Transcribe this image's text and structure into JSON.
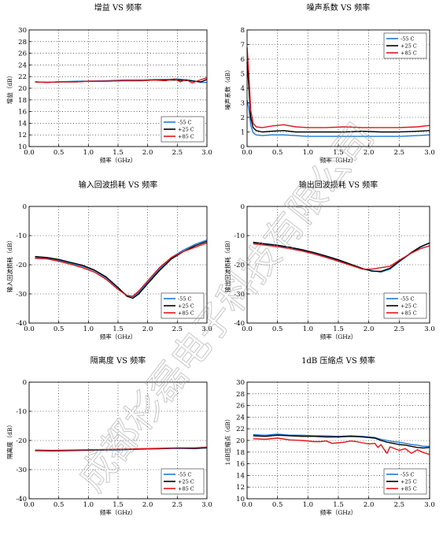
{
  "colors": {
    "m55": "#1f77d4",
    "p25": "#000000",
    "p85": "#e0161b"
  },
  "watermark": "成都杉磊电子科技有限公司",
  "chart_data": [
    {
      "type": "line",
      "title": "增益 VS 频率",
      "xlabel": "频率（GHz）",
      "ylabel": "增益（dB）",
      "xlim": [
        0.0,
        3.0
      ],
      "ylim": [
        10,
        30
      ],
      "xticks": [
        "0.0",
        "0.5",
        "1.0",
        "1.5",
        "2.0",
        "2.5",
        "3.0"
      ],
      "yticks": [
        "10",
        "12",
        "14",
        "16",
        "18",
        "20",
        "22",
        "24",
        "26",
        "28",
        "30"
      ],
      "legend_position": "bottom-right",
      "grid": true,
      "series": [
        {
          "name": "-55 C",
          "color": "#1f77d4",
          "x": [
            0.1,
            0.3,
            0.5,
            0.8,
            1.0,
            1.3,
            1.6,
            1.9,
            2.1,
            2.3,
            2.5,
            2.7,
            2.9,
            3.0
          ],
          "y": [
            21.1,
            21.0,
            21.1,
            21.2,
            21.2,
            21.3,
            21.4,
            21.4,
            21.5,
            21.5,
            21.6,
            21.4,
            21.0,
            21.0
          ]
        },
        {
          "name": "+25 C",
          "color": "#000000",
          "x": [
            0.1,
            0.3,
            0.5,
            0.8,
            1.0,
            1.3,
            1.6,
            1.9,
            2.1,
            2.3,
            2.5,
            2.7,
            2.9,
            3.0
          ],
          "y": [
            21.1,
            21.0,
            21.1,
            21.1,
            21.2,
            21.2,
            21.3,
            21.3,
            21.4,
            21.4,
            21.4,
            21.3,
            21.1,
            21.5
          ]
        },
        {
          "name": "+85 C",
          "color": "#e0161b",
          "x": [
            0.1,
            0.3,
            0.5,
            0.8,
            1.0,
            1.3,
            1.6,
            1.9,
            2.1,
            2.3,
            2.45,
            2.55,
            2.65,
            2.75,
            2.85,
            3.0
          ],
          "y": [
            21.1,
            21.0,
            21.1,
            21.1,
            21.2,
            21.2,
            21.3,
            21.3,
            21.4,
            21.3,
            21.6,
            21.1,
            21.5,
            20.9,
            21.3,
            21.8
          ]
        }
      ]
    },
    {
      "type": "line",
      "title": "噪声系数 VS 频率",
      "xlabel": "频率（GHz）",
      "ylabel": "噪声系数（dB）",
      "xlim": [
        0.0,
        3.0
      ],
      "ylim": [
        0,
        8
      ],
      "xticks": [
        "0.0",
        "0.5",
        "1.0",
        "1.5",
        "2.0",
        "2.5",
        "3.0"
      ],
      "yticks": [
        "0",
        "1",
        "2",
        "3",
        "4",
        "5",
        "6",
        "7",
        "8"
      ],
      "legend_position": "top-right",
      "grid": true,
      "series": [
        {
          "name": "-55 C",
          "color": "#1f77d4",
          "x": [
            0.0,
            0.03,
            0.06,
            0.1,
            0.15,
            0.25,
            0.4,
            0.6,
            0.8,
            1.0,
            1.3,
            1.6,
            1.9,
            2.2,
            2.5,
            2.8,
            3.0
          ],
          "y": [
            3.2,
            2.6,
            1.5,
            0.95,
            0.8,
            0.75,
            0.8,
            0.8,
            0.75,
            0.7,
            0.7,
            0.7,
            0.7,
            0.7,
            0.7,
            0.75,
            0.8
          ]
        },
        {
          "name": "+25 C",
          "color": "#000000",
          "x": [
            0.0,
            0.03,
            0.06,
            0.1,
            0.15,
            0.25,
            0.4,
            0.6,
            0.8,
            1.0,
            1.3,
            1.6,
            1.9,
            2.2,
            2.5,
            2.8,
            3.0
          ],
          "y": [
            5.8,
            4.0,
            2.0,
            1.3,
            1.1,
            1.0,
            1.05,
            1.1,
            1.0,
            1.0,
            1.0,
            1.0,
            1.05,
            1.0,
            1.0,
            1.05,
            1.1
          ]
        },
        {
          "name": "+85 C",
          "color": "#e0161b",
          "x": [
            0.0,
            0.03,
            0.06,
            0.1,
            0.15,
            0.25,
            0.4,
            0.6,
            0.8,
            1.0,
            1.3,
            1.6,
            1.9,
            2.2,
            2.5,
            2.8,
            3.0
          ],
          "y": [
            6.8,
            5.0,
            2.5,
            1.6,
            1.35,
            1.3,
            1.4,
            1.5,
            1.35,
            1.3,
            1.3,
            1.35,
            1.3,
            1.3,
            1.3,
            1.35,
            1.45
          ]
        }
      ]
    },
    {
      "type": "line",
      "title": "输入回波损耗 VS 频率",
      "xlabel": "频率（GHz）",
      "ylabel": "输入回波损耗（dB）",
      "xlim": [
        0.0,
        3.0
      ],
      "ylim": [
        -40,
        0
      ],
      "xticks": [
        "0.0",
        "0.5",
        "1.0",
        "1.5",
        "2.0",
        "2.5",
        "3.0"
      ],
      "yticks": [
        "-40",
        "-30",
        "-20",
        "-10",
        "0"
      ],
      "legend_position": "bottom-right",
      "grid": true,
      "series": [
        {
          "name": "-55 C",
          "color": "#1f77d4",
          "x": [
            0.1,
            0.3,
            0.5,
            0.7,
            0.9,
            1.1,
            1.3,
            1.5,
            1.65,
            1.75,
            1.85,
            2.0,
            2.2,
            2.4,
            2.6,
            2.8,
            3.0
          ],
          "y": [
            -17.5,
            -17.8,
            -18.5,
            -19.5,
            -20.5,
            -22.0,
            -24.5,
            -28.0,
            -30.5,
            -31.0,
            -29.5,
            -26.0,
            -21.5,
            -17.5,
            -15.0,
            -13.0,
            -11.5
          ]
        },
        {
          "name": "+25 C",
          "color": "#000000",
          "x": [
            0.1,
            0.3,
            0.5,
            0.7,
            0.9,
            1.1,
            1.3,
            1.5,
            1.65,
            1.75,
            1.85,
            2.0,
            2.2,
            2.4,
            2.6,
            2.8,
            3.0
          ],
          "y": [
            -17.2,
            -17.5,
            -18.2,
            -19.2,
            -20.2,
            -21.8,
            -24.2,
            -27.8,
            -30.8,
            -31.5,
            -30.0,
            -26.5,
            -22.0,
            -18.0,
            -15.5,
            -13.5,
            -12.0
          ]
        },
        {
          "name": "+85 C",
          "color": "#e0161b",
          "x": [
            0.1,
            0.3,
            0.5,
            0.7,
            0.9,
            1.1,
            1.3,
            1.5,
            1.65,
            1.75,
            1.85,
            2.0,
            2.2,
            2.4,
            2.6,
            2.8,
            3.0
          ],
          "y": [
            -17.8,
            -18.0,
            -18.8,
            -19.8,
            -21.0,
            -22.5,
            -25.0,
            -28.5,
            -30.5,
            -30.8,
            -29.0,
            -25.5,
            -21.0,
            -17.5,
            -15.5,
            -14.0,
            -12.5
          ]
        }
      ]
    },
    {
      "type": "line",
      "title": "输出回波损耗 VS 频率",
      "xlabel": "频率（GHz）",
      "ylabel": "输出回波损耗（dB）",
      "xlim": [
        0.0,
        3.0
      ],
      "ylim": [
        -40,
        0
      ],
      "xticks": [
        "0.0",
        "0.5",
        "1.0",
        "1.5",
        "2.0",
        "2.5",
        "3.0"
      ],
      "yticks": [
        "-40",
        "-30",
        "-20",
        "-10",
        "0"
      ],
      "legend_position": "bottom-right",
      "grid": true,
      "series": [
        {
          "name": "-55 C",
          "color": "#1f77d4",
          "x": [
            0.1,
            0.3,
            0.5,
            0.7,
            0.9,
            1.1,
            1.3,
            1.5,
            1.7,
            1.9,
            2.05,
            2.2,
            2.35,
            2.5,
            2.7,
            2.85,
            3.0
          ],
          "y": [
            -12.5,
            -13.0,
            -13.5,
            -14.2,
            -15.0,
            -16.0,
            -17.2,
            -18.5,
            -20.0,
            -21.5,
            -22.0,
            -22.5,
            -21.5,
            -19.0,
            -16.0,
            -14.0,
            -12.5
          ]
        },
        {
          "name": "+25 C",
          "color": "#000000",
          "x": [
            0.1,
            0.3,
            0.5,
            0.7,
            0.9,
            1.1,
            1.3,
            1.5,
            1.7,
            1.9,
            2.05,
            2.2,
            2.35,
            2.5,
            2.7,
            2.85,
            3.0
          ],
          "y": [
            -12.3,
            -12.8,
            -13.3,
            -14.0,
            -14.8,
            -15.8,
            -17.0,
            -18.3,
            -19.8,
            -21.3,
            -22.2,
            -22.3,
            -21.2,
            -18.8,
            -15.8,
            -13.8,
            -12.5
          ]
        },
        {
          "name": "+85 C",
          "color": "#e0161b",
          "x": [
            0.1,
            0.3,
            0.5,
            0.7,
            0.9,
            1.1,
            1.3,
            1.5,
            1.7,
            1.9,
            2.05,
            2.2,
            2.35,
            2.5,
            2.7,
            2.85,
            3.0
          ],
          "y": [
            -12.8,
            -13.3,
            -13.8,
            -14.5,
            -15.3,
            -16.3,
            -17.5,
            -18.8,
            -20.2,
            -21.5,
            -21.5,
            -21.0,
            -20.5,
            -18.5,
            -16.0,
            -14.5,
            -13.5
          ]
        }
      ]
    },
    {
      "type": "line",
      "title": "隔离度 VS 频率",
      "xlabel": "频率（GHz）",
      "ylabel": "隔离度（dB）",
      "xlim": [
        0.0,
        3.0
      ],
      "ylim": [
        -40,
        0
      ],
      "xticks": [
        "0.0",
        "0.5",
        "1.0",
        "1.5",
        "2.0",
        "2.5",
        "3.0"
      ],
      "yticks": [
        "-40",
        "-30",
        "-20",
        "-10",
        "0"
      ],
      "legend_position": "bottom-right",
      "grid": true,
      "series": [
        {
          "name": "-55 C",
          "color": "#1f77d4",
          "x": [
            0.1,
            0.4,
            0.7,
            1.0,
            1.3,
            1.6,
            1.9,
            2.2,
            2.5,
            2.8,
            3.0
          ],
          "y": [
            -23.5,
            -23.6,
            -23.5,
            -23.4,
            -23.3,
            -23.2,
            -23.0,
            -22.8,
            -22.7,
            -22.8,
            -22.6
          ]
        },
        {
          "name": "+25 C",
          "color": "#000000",
          "x": [
            0.1,
            0.4,
            0.7,
            1.0,
            1.3,
            1.6,
            1.9,
            2.2,
            2.5,
            2.8,
            3.0
          ],
          "y": [
            -23.4,
            -23.5,
            -23.4,
            -23.3,
            -23.2,
            -23.1,
            -22.9,
            -22.8,
            -22.6,
            -22.7,
            -22.5
          ]
        },
        {
          "name": "+85 C",
          "color": "#e0161b",
          "x": [
            0.1,
            0.4,
            0.7,
            1.0,
            1.3,
            1.6,
            1.9,
            2.2,
            2.5,
            2.8,
            3.0
          ],
          "y": [
            -23.3,
            -23.4,
            -23.3,
            -23.2,
            -23.1,
            -23.0,
            -22.8,
            -22.7,
            -22.5,
            -22.5,
            -22.3
          ]
        }
      ]
    },
    {
      "type": "line",
      "title": "1dB 压缩点 VS 频率",
      "xlabel": "频率（GHz）",
      "ylabel": "1dB压缩点（dB）",
      "xlim": [
        0.0,
        3.0
      ],
      "ylim": [
        10,
        30
      ],
      "xticks": [
        "0.0",
        "0.5",
        "1.0",
        "1.5",
        "2.0",
        "2.5",
        "3.0"
      ],
      "yticks": [
        "10",
        "12",
        "14",
        "16",
        "18",
        "20",
        "22",
        "24",
        "26",
        "28",
        "30"
      ],
      "legend_position": "bottom-right",
      "grid": true,
      "series": [
        {
          "name": "-55 C",
          "color": "#1f77d4",
          "x": [
            0.1,
            0.3,
            0.5,
            0.7,
            0.9,
            1.1,
            1.3,
            1.5,
            1.7,
            1.9,
            2.1,
            2.2,
            2.3,
            2.4,
            2.5,
            2.6,
            2.7,
            2.8,
            2.9,
            3.0
          ],
          "y": [
            21.0,
            20.9,
            21.1,
            20.9,
            20.9,
            20.8,
            20.8,
            20.7,
            20.8,
            20.7,
            20.5,
            20.2,
            20.0,
            19.8,
            19.7,
            19.5,
            19.3,
            19.2,
            19.0,
            19.0
          ]
        },
        {
          "name": "+25 C",
          "color": "#000000",
          "x": [
            0.1,
            0.3,
            0.5,
            0.7,
            0.9,
            1.1,
            1.3,
            1.5,
            1.7,
            1.9,
            2.1,
            2.2,
            2.3,
            2.4,
            2.5,
            2.6,
            2.7,
            2.8,
            2.9,
            3.0
          ],
          "y": [
            20.8,
            20.7,
            20.9,
            20.8,
            20.7,
            20.7,
            20.6,
            20.6,
            20.7,
            20.6,
            20.4,
            20.0,
            19.7,
            19.5,
            19.3,
            19.2,
            19.0,
            18.8,
            18.7,
            18.8
          ]
        },
        {
          "name": "+85 C",
          "color": "#e0161b",
          "x": [
            0.1,
            0.3,
            0.5,
            0.7,
            0.9,
            1.1,
            1.2,
            1.3,
            1.4,
            1.5,
            1.6,
            1.7,
            1.8,
            1.9,
            2.0,
            2.1,
            2.15,
            2.2,
            2.25,
            2.3,
            2.35,
            2.45,
            2.5,
            2.6,
            2.7,
            2.8,
            2.9,
            3.0
          ],
          "y": [
            20.3,
            20.2,
            20.4,
            20.1,
            20.0,
            19.8,
            19.8,
            19.9,
            19.5,
            19.6,
            19.7,
            19.9,
            19.8,
            19.6,
            19.4,
            19.5,
            18.8,
            19.3,
            18.5,
            17.8,
            18.9,
            18.5,
            18.3,
            18.6,
            17.8,
            18.4,
            17.9,
            17.6
          ]
        }
      ]
    }
  ]
}
